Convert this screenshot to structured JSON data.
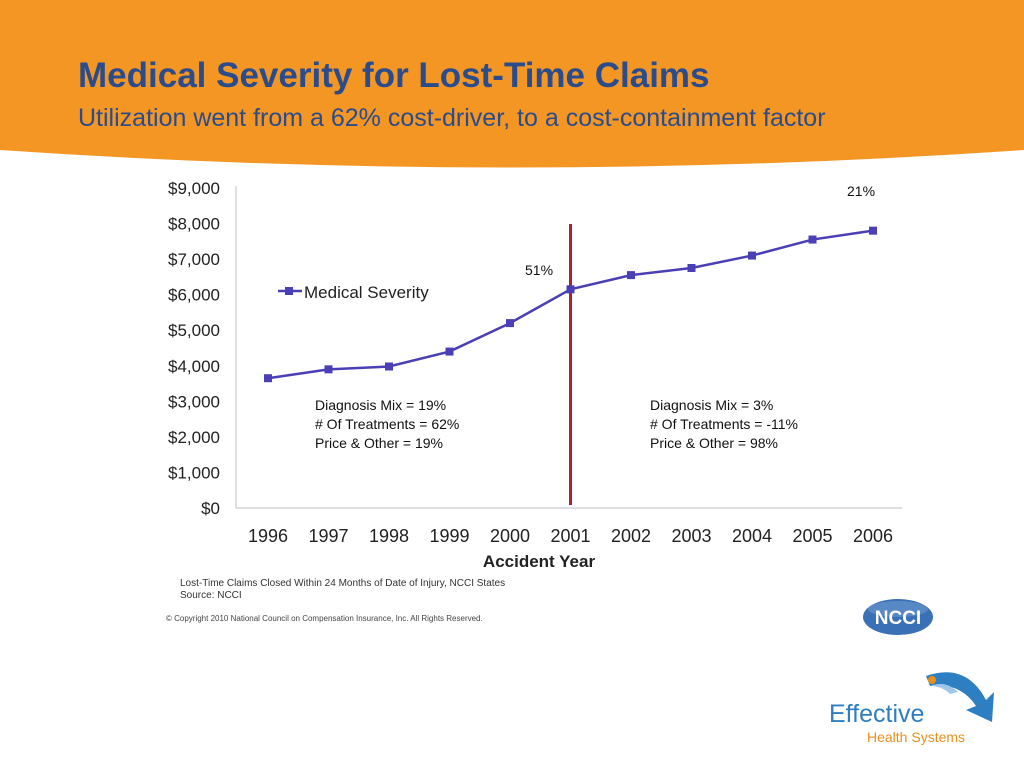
{
  "header": {
    "title": "Medical Severity for Lost-Time Claims",
    "subtitle": "Utilization went from a 62% cost-driver, to a cost-containment factor"
  },
  "colors": {
    "banner": "#f39623",
    "title": "#2b4c8c",
    "series": "#4a3fb5",
    "divider": "#b3202a",
    "axis": "#c0c0c0"
  },
  "chart_data": {
    "type": "line",
    "title": "",
    "xlabel": "Accident Year",
    "ylabel": "",
    "categories": [
      "1996",
      "1997",
      "1998",
      "1999",
      "2000",
      "2001",
      "2002",
      "2003",
      "2004",
      "2005",
      "2006"
    ],
    "series": [
      {
        "name": "Medical Severity",
        "values": [
          3650,
          3900,
          3980,
          4400,
          5200,
          6150,
          6550,
          6750,
          7100,
          7550,
          7800
        ]
      }
    ],
    "ylim": [
      0,
      9000
    ],
    "y_ticks": [
      0,
      1000,
      2000,
      3000,
      4000,
      5000,
      6000,
      7000,
      8000,
      9000
    ],
    "y_tick_labels": [
      "$0",
      "$1,000",
      "$2,000",
      "$3,000",
      "$4,000",
      "$5,000",
      "$6,000",
      "$7,000",
      "$8,000",
      "$9,000"
    ],
    "legend_label": "Medical Severity",
    "legend_position": "upper-left",
    "divider_year": "2001",
    "annotations": {
      "pct_2001": "51%",
      "pct_2006": "21%",
      "left_note": [
        "Diagnosis Mix = 19%",
        "# Of Treatments = 62%",
        "Price & Other = 19%"
      ],
      "right_note": [
        "Diagnosis Mix = 3%",
        "# Of Treatments = -11%",
        "Price & Other = 98%"
      ]
    }
  },
  "footer": {
    "source_line1": "Lost-Time Claims Closed Within 24 Months of Date of Injury, NCCI States",
    "source_line2": "Source: NCCI",
    "copyright": "© Copyright 2010 National Council on Compensation Insurance, Inc. All Rights Reserved."
  },
  "logos": {
    "ncci": "NCCI",
    "ehs_line1": "Effective",
    "ehs_line2": "Health Systems"
  }
}
